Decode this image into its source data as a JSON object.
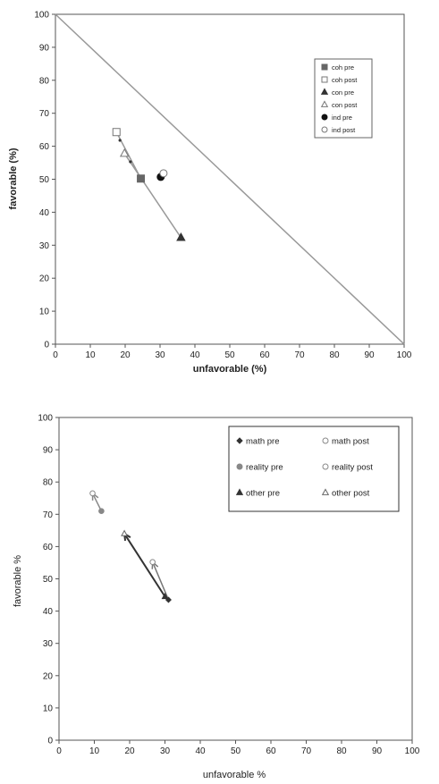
{
  "chart_data": [
    {
      "type": "scatter",
      "title": "",
      "xlabel": "unfavorable (%)",
      "ylabel": "favorable (%)",
      "xlim": [
        0,
        100
      ],
      "ylim": [
        0,
        100
      ],
      "xticks": [
        "0",
        "10",
        "20",
        "30",
        "40",
        "50",
        "60",
        "70",
        "80",
        "90",
        "100"
      ],
      "yticks": [
        "0",
        "10",
        "20",
        "30",
        "40",
        "50",
        "60",
        "70",
        "80",
        "90",
        "100"
      ],
      "grid": false,
      "legend_position": "top-right",
      "diagonal": true,
      "series": [
        {
          "name": "coh pre",
          "marker": "square-filled",
          "color": "#666666",
          "x": [
            24.5
          ],
          "y": [
            50.2
          ]
        },
        {
          "name": "coh post",
          "marker": "square-open",
          "color": "#777777",
          "x": [
            17.5
          ],
          "y": [
            64.3
          ]
        },
        {
          "name": "con pre",
          "marker": "triangle-filled",
          "color": "#333333",
          "x": [
            36
          ],
          "y": [
            32.3
          ]
        },
        {
          "name": "con post",
          "marker": "triangle-open",
          "color": "#777777",
          "x": [
            19.8
          ],
          "y": [
            57.8
          ]
        },
        {
          "name": "ind pre",
          "marker": "circle-filled",
          "color": "#111111",
          "x": [
            30.2
          ],
          "y": [
            50.7
          ]
        },
        {
          "name": "ind post",
          "marker": "circle-open",
          "color": "#777777",
          "x": [
            31
          ],
          "y": [
            51.8
          ]
        }
      ],
      "extra_points": [
        {
          "x": 18.5,
          "y": 61.8
        },
        {
          "x": 21.5,
          "y": 55.3
        }
      ]
    },
    {
      "type": "scatter",
      "title": "",
      "xlabel": "unfavorable %",
      "ylabel": "favorable %",
      "xlim": [
        0,
        100
      ],
      "ylim": [
        0,
        100
      ],
      "xticks": [
        "0",
        "10",
        "20",
        "30",
        "40",
        "50",
        "60",
        "70",
        "80",
        "90",
        "100"
      ],
      "yticks": [
        "0",
        "10",
        "20",
        "30",
        "40",
        "50",
        "60",
        "70",
        "80",
        "90",
        "100"
      ],
      "grid": false,
      "legend_position": "top-right",
      "series": [
        {
          "name": "math pre",
          "marker": "diamond-filled",
          "color": "#333333",
          "x": [
            31
          ],
          "y": [
            43.5
          ]
        },
        {
          "name": "math post",
          "marker": "circle-open",
          "color": "#888888",
          "x": [
            26.5
          ],
          "y": [
            55.2
          ]
        },
        {
          "name": "reality pre",
          "marker": "circle-filled",
          "color": "#888888",
          "x": [
            12
          ],
          "y": [
            71
          ]
        },
        {
          "name": "reality post",
          "marker": "circle-open",
          "color": "#888888",
          "x": [
            9.5
          ],
          "y": [
            76.5
          ]
        },
        {
          "name": "other pre",
          "marker": "triangle-filled",
          "color": "#333333",
          "x": [
            30
          ],
          "y": [
            44.5
          ]
        },
        {
          "name": "other post",
          "marker": "triangle-open",
          "color": "#666666",
          "x": [
            18.5
          ],
          "y": [
            64
          ]
        }
      ]
    }
  ]
}
